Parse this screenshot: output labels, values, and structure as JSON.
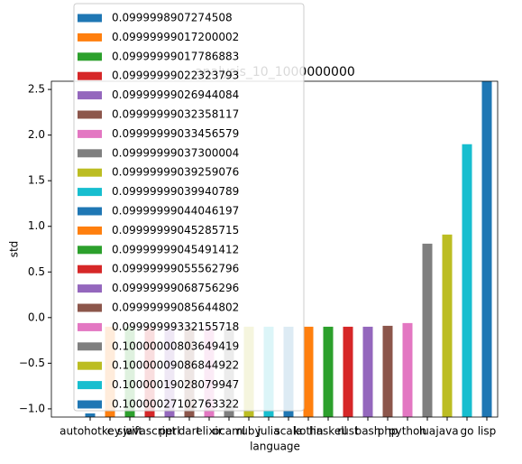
{
  "chart_data": {
    "type": "bar",
    "title": "analysis_10_1000000000",
    "xlabel": "language",
    "ylabel": "std",
    "categories": [
      "autohotkey",
      "c",
      "swift",
      "javascript",
      "perl",
      "dart",
      "elixir",
      "ocaml",
      "ruby",
      "julia",
      "scala",
      "kotlin",
      "haskell",
      "rust",
      "bash",
      "php",
      "python",
      "lua",
      "java",
      "go",
      "lisp"
    ],
    "series": [
      {
        "name": "0.0999998907274508",
        "color": "#1f77b4"
      },
      {
        "name": "0.09999999017200002",
        "color": "#ff7f0e"
      },
      {
        "name": "0.09999999017786883",
        "color": "#2ca02c"
      },
      {
        "name": "0.09999999022323793",
        "color": "#d62728"
      },
      {
        "name": "0.09999999026944084",
        "color": "#9467bd"
      },
      {
        "name": "0.09999999032358117",
        "color": "#8c564b"
      },
      {
        "name": "0.09999999033456579",
        "color": "#e377c2"
      },
      {
        "name": "0.09999999037300004",
        "color": "#7f7f7f"
      },
      {
        "name": "0.09999999039259076",
        "color": "#bcbd22"
      },
      {
        "name": "0.09999999039940789",
        "color": "#17becf"
      },
      {
        "name": "0.09999999044046197",
        "color": "#1f77b4"
      },
      {
        "name": "0.09999999045285715",
        "color": "#ff7f0e"
      },
      {
        "name": "0.09999999045491412",
        "color": "#2ca02c"
      },
      {
        "name": "0.09999999055562796",
        "color": "#d62728"
      },
      {
        "name": "0.09999999068756296",
        "color": "#9467bd"
      },
      {
        "name": "0.09999999085644802",
        "color": "#8c564b"
      },
      {
        "name": "0.09999999332155718",
        "color": "#e377c2"
      },
      {
        "name": "0.10000000803649419",
        "color": "#7f7f7f"
      },
      {
        "name": "0.10000009086844922",
        "color": "#bcbd22"
      },
      {
        "name": "0.10000019028079947",
        "color": "#17becf"
      },
      {
        "name": "0.10000027102763322",
        "color": "#1f77b4"
      }
    ],
    "values": [
      -1.05,
      -0.1,
      -0.1,
      -0.1,
      -0.1,
      -0.1,
      -0.1,
      -0.1,
      -0.1,
      -0.1,
      -0.1,
      -0.1,
      -0.1,
      -0.1,
      -0.1,
      -0.09,
      -0.06,
      0.81,
      0.91,
      1.9,
      2.7
    ],
    "ylim": [
      -1.09,
      2.59
    ],
    "yticks": [
      {
        "value": -1,
        "label": "−1.0"
      },
      {
        "value": -0.5,
        "label": "−0.5"
      },
      {
        "value": 0,
        "label": "0.0"
      },
      {
        "value": 0.5,
        "label": "0.5"
      },
      {
        "value": 1,
        "label": "1.0"
      },
      {
        "value": 1.5,
        "label": "1.5"
      },
      {
        "value": 2,
        "label": "2.0"
      },
      {
        "value": 2.5,
        "label": "2.5"
      }
    ],
    "legend": "upper left"
  }
}
